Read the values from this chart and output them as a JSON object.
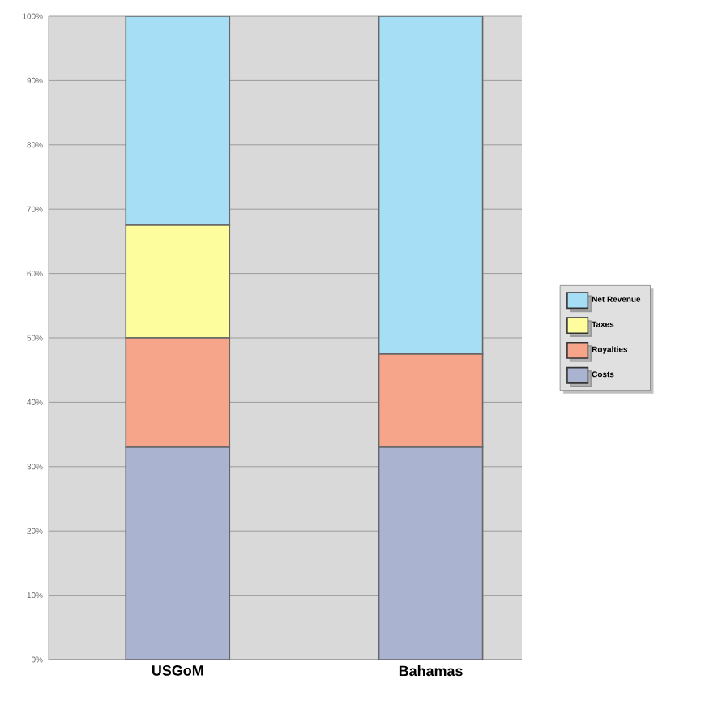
{
  "chart_data": {
    "type": "bar",
    "stacked": true,
    "categories": [
      "USGoM",
      "Bahamas"
    ],
    "series": [
      {
        "name": "Costs",
        "color": "#aab3cf",
        "values": [
          33,
          33
        ]
      },
      {
        "name": "Royalties",
        "color": "#f7a58a",
        "values": [
          17,
          14.5
        ]
      },
      {
        "name": "Taxes",
        "color": "#fdfd9e",
        "values": [
          17.5,
          0
        ]
      },
      {
        "name": "Net Revenue",
        "color": "#a6def5",
        "values": [
          32.5,
          52.5
        ]
      }
    ],
    "ylim": [
      0,
      100
    ],
    "yticks": [
      {
        "value": 0,
        "label": "0%"
      },
      {
        "value": 10,
        "label": "10%"
      },
      {
        "value": 20,
        "label": "20%"
      },
      {
        "value": 30,
        "label": "30%"
      },
      {
        "value": 40,
        "label": "40%"
      },
      {
        "value": 50,
        "label": "50%"
      },
      {
        "value": 60,
        "label": "60%"
      },
      {
        "value": 70,
        "label": "70%"
      },
      {
        "value": 80,
        "label": "80%"
      },
      {
        "value": 90,
        "label": "90%"
      },
      {
        "value": 100,
        "label": "100%"
      }
    ],
    "grid": "y",
    "legend": "right"
  }
}
